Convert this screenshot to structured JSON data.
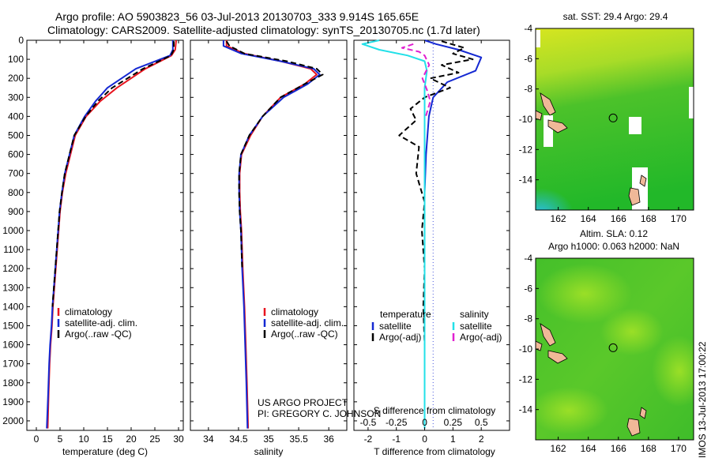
{
  "header": {
    "title_line1": "Argo profile: AO 5903823_56 03-Jul-2013 20130703_333 9.914S 165.65E",
    "title_line2": "Climatology: CARS2009. Satellite-adjusted climatology: synTS_20130705.nc (1.7d later)"
  },
  "side_label": "IMOS 13-Jul-2013 17:00:22",
  "colors": {
    "climatology": "#e8141e",
    "satellite": "#1428d2",
    "argo": "#000000",
    "sal_satellite": "#22e0e8",
    "sal_argo": "#e020d0",
    "land": "#f0b898",
    "ocean_green": "#22b829",
    "ocean_lime": "#8adb27",
    "ocean_yellow": "#d6e520",
    "ocean_cyan": "#2bbde0"
  },
  "chart_data": [
    {
      "id": "temperature",
      "type": "line",
      "xlabel": "temperature (deg C)",
      "xlim": [
        -2,
        31
      ],
      "ylim": [
        2050,
        0
      ],
      "xticks": [
        0,
        5,
        10,
        15,
        20,
        25,
        30
      ],
      "yticks": [
        0,
        100,
        200,
        300,
        400,
        500,
        600,
        700,
        800,
        900,
        1000,
        1100,
        1200,
        1300,
        1400,
        1500,
        1600,
        1700,
        1800,
        1900,
        2000
      ],
      "legend": [
        "climatology",
        "satellite-adj. clim.",
        "Argo(..raw -QC)"
      ],
      "series": [
        {
          "name": "climatology",
          "color": "#e8141e",
          "style": "solid",
          "x": [
            29.5,
            29.3,
            28.5,
            23,
            17,
            13.5,
            10.5,
            8.2,
            7.2,
            6.2,
            5.5,
            5.0,
            4.7,
            4.4,
            4.1,
            3.8,
            3.5,
            3.3,
            3.0,
            2.8,
            2.6,
            2.4
          ],
          "y": [
            0,
            50,
            80,
            150,
            250,
            320,
            400,
            500,
            600,
            700,
            800,
            900,
            1000,
            1100,
            1200,
            1300,
            1400,
            1500,
            1600,
            1700,
            1850,
            2040
          ]
        },
        {
          "name": "satellite-adj. clim.",
          "color": "#1428d2",
          "style": "solid",
          "x": [
            28.8,
            28.8,
            28.2,
            21,
            15,
            12.5,
            10.2,
            8.0,
            7.0,
            6.0,
            5.4,
            4.9,
            4.6,
            4.3,
            4.0,
            3.7,
            3.4,
            3.2,
            2.9,
            2.7,
            2.5,
            2.2
          ],
          "y": [
            0,
            50,
            80,
            150,
            250,
            320,
            400,
            500,
            600,
            700,
            800,
            900,
            1000,
            1100,
            1200,
            1300,
            1400,
            1500,
            1600,
            1700,
            1850,
            2040
          ]
        },
        {
          "name": "Argo(..raw -QC)",
          "color": "#000000",
          "style": "dashed",
          "x": [
            29.0,
            29.0,
            28.4,
            22.5,
            16,
            13,
            10.4,
            8.0,
            7.0,
            6.0,
            5.4,
            4.9,
            4.6,
            4.3,
            4.0,
            3.7,
            3.4
          ],
          "y": [
            5,
            50,
            80,
            150,
            250,
            320,
            400,
            500,
            600,
            700,
            800,
            900,
            1000,
            1100,
            1200,
            1300,
            1400
          ]
        }
      ]
    },
    {
      "id": "salinity",
      "type": "line",
      "xlabel": "salinity",
      "xlim": [
        33.7,
        36.3
      ],
      "ylim": [
        2050,
        0
      ],
      "xticks": [
        34,
        34.5,
        35,
        35.5,
        36
      ],
      "legend": [
        "climatology",
        "satellite-adj. clim.",
        "Argo(..raw -QC)"
      ],
      "annotation_line1": "US ARGO PROJECT",
      "annotation_line2": "PI: GREGORY C. JOHNSON",
      "series": [
        {
          "name": "climatology",
          "color": "#e8141e",
          "style": "solid",
          "x": [
            34.3,
            34.3,
            34.6,
            35.2,
            35.7,
            35.8,
            35.6,
            35.2,
            34.9,
            34.7,
            34.55,
            34.52,
            34.52,
            34.53,
            34.55,
            34.57,
            34.6,
            34.62,
            34.64,
            34.66
          ],
          "y": [
            0,
            30,
            70,
            110,
            150,
            180,
            230,
            300,
            400,
            500,
            600,
            700,
            800,
            900,
            1000,
            1200,
            1400,
            1600,
            1800,
            2040
          ]
        },
        {
          "name": "satellite-adj. clim.",
          "color": "#1428d2",
          "style": "solid",
          "x": [
            34.25,
            34.25,
            34.55,
            35.2,
            35.75,
            35.85,
            35.65,
            35.25,
            34.9,
            34.68,
            34.54,
            34.51,
            34.51,
            34.52,
            34.54,
            34.56,
            34.59,
            34.61,
            34.63,
            34.65
          ],
          "y": [
            0,
            30,
            70,
            110,
            150,
            180,
            230,
            300,
            400,
            500,
            600,
            700,
            800,
            900,
            1000,
            1200,
            1400,
            1600,
            1800,
            2040
          ]
        },
        {
          "name": "Argo(..raw -QC)",
          "color": "#000000",
          "style": "dashed",
          "x": [
            34.3,
            34.35,
            34.6,
            35.3,
            35.8,
            35.9,
            35.6,
            35.2,
            34.9,
            34.68,
            34.54,
            34.51,
            34.51,
            34.52,
            34.54,
            34.56
          ],
          "y": [
            5,
            30,
            70,
            110,
            150,
            180,
            230,
            300,
            400,
            500,
            600,
            700,
            800,
            900,
            1000,
            1200
          ]
        }
      ]
    },
    {
      "id": "difference",
      "type": "line",
      "xlabel": "T difference from climatology",
      "top_axis_label": "S difference from climatology",
      "xlim": [
        -2.5,
        3
      ],
      "s_xlim": [
        -0.625,
        0.75
      ],
      "ylim": [
        2050,
        0
      ],
      "xticks": [
        -2,
        -1,
        0,
        1,
        2
      ],
      "s_xticks": [
        -0.5,
        -0.25,
        0,
        0.25,
        0.5
      ],
      "legend_temperature_title": "temperature",
      "legend_salinity_title": "salinity",
      "legend": [
        "satellite",
        "Argo(-adj)",
        "satellite",
        "Argo(-adj)"
      ],
      "series": [
        {
          "name": "T satellite",
          "color": "#1428d2",
          "style": "solid",
          "x": [
            0,
            0.4,
            1.2,
            2.0,
            1.8,
            0.8,
            0.3,
            0.15,
            0.1,
            0.05,
            0,
            0,
            0,
            0,
            0,
            0
          ],
          "y": [
            0,
            20,
            50,
            90,
            160,
            220,
            300,
            400,
            500,
            600,
            800,
            1000,
            1200,
            1400,
            1700,
            2040
          ]
        },
        {
          "name": "T Argo(-adj)",
          "color": "#000000",
          "style": "dashed",
          "x": [
            0.6,
            1.4,
            1.0,
            1.7,
            0.6,
            1.2,
            0.2,
            0.9,
            0,
            -0.5,
            -0.3,
            -0.9,
            -0.2,
            -0.3,
            0,
            -0.1,
            0,
            -0.05,
            0
          ],
          "y": [
            5,
            40,
            70,
            100,
            130,
            170,
            200,
            250,
            300,
            360,
            420,
            500,
            560,
            700,
            850,
            1000,
            1200,
            1400,
            1600
          ]
        },
        {
          "name": "S satellite",
          "color": "#22e0e8",
          "style": "solid",
          "x": [
            -0.4,
            -0.55,
            -0.4,
            -0.15,
            0.0,
            0.02,
            0,
            0,
            0,
            0,
            0,
            0
          ],
          "y": [
            0,
            20,
            50,
            80,
            110,
            160,
            250,
            400,
            700,
            1000,
            1500,
            2040
          ]
        },
        {
          "name": "S Argo(-adj)",
          "color": "#e020d0",
          "style": "dashed",
          "x": [
            -0.1,
            -0.2,
            -0.05,
            0,
            0.04,
            -0.02,
            0.02,
            0.05,
            0.01
          ],
          "y": [
            20,
            40,
            60,
            80,
            130,
            200,
            260,
            320,
            400
          ]
        }
      ]
    },
    {
      "id": "sst_map",
      "type": "heatmap",
      "title": "sat. SST: 29.4 Argo: 29.4",
      "xlim": [
        160.5,
        171
      ],
      "ylim": [
        -16,
        -4
      ],
      "xticks": [
        162,
        164,
        166,
        168,
        170
      ],
      "yticks": [
        -4,
        -6,
        -8,
        -10,
        -12,
        -14
      ],
      "marker": {
        "lon": 165.65,
        "lat": -9.914
      }
    },
    {
      "id": "sla_map",
      "type": "heatmap",
      "title": "Altim. SLA: 0.12",
      "title_line2": "Argo h1000: 0.063 h2000: NaN",
      "xlim": [
        160.5,
        171
      ],
      "ylim": [
        -16,
        -4
      ],
      "xticks": [
        162,
        164,
        166,
        168,
        170
      ],
      "yticks": [
        -4,
        -6,
        -8,
        -10,
        -12,
        -14
      ],
      "marker": {
        "lon": 165.65,
        "lat": -9.914
      }
    }
  ]
}
